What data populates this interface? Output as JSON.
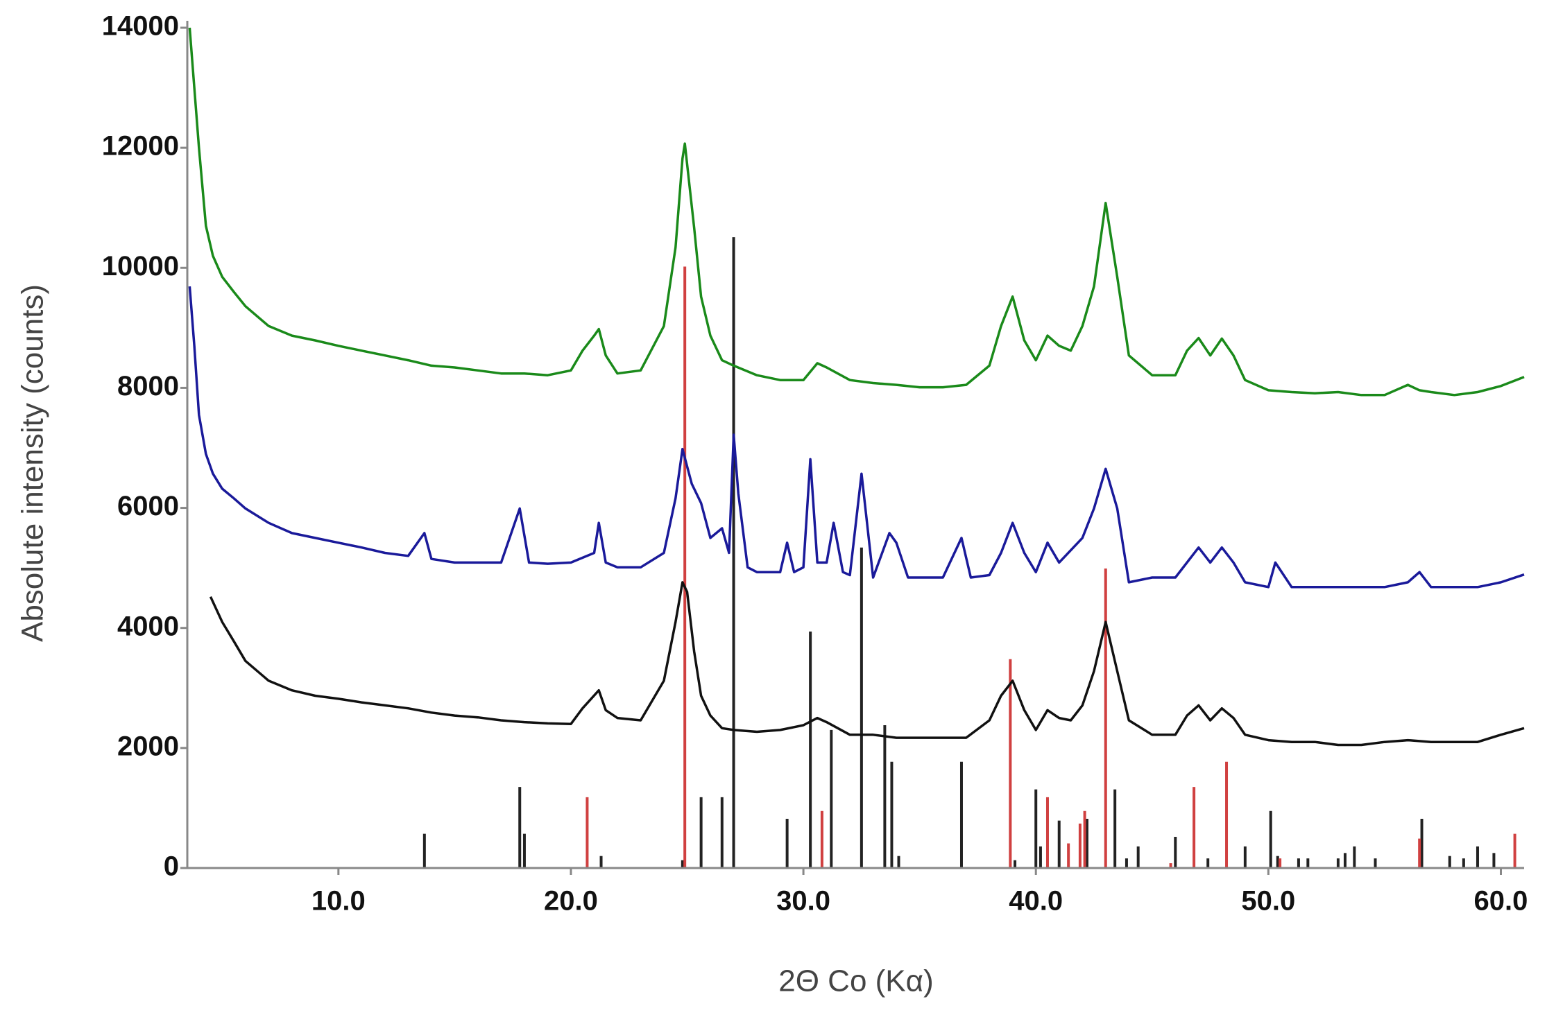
{
  "chart_data": {
    "type": "line",
    "xlabel": "2Θ Co (Kα)",
    "ylabel": "Absolute intensity (counts)",
    "xlim": [
      3.5,
      61
    ],
    "ylim": [
      0,
      14000
    ],
    "xticks": [
      {
        "value": 10,
        "label": "10.0"
      },
      {
        "value": 20,
        "label": "20.0"
      },
      {
        "value": 30,
        "label": "30.0"
      },
      {
        "value": 40,
        "label": "40.0"
      },
      {
        "value": 50,
        "label": "50.0"
      },
      {
        "value": 60,
        "label": "60.0"
      }
    ],
    "yticks": [
      0,
      2000,
      4000,
      6000,
      8000,
      10000,
      12000,
      14000
    ],
    "series": [
      {
        "color": "#1a8a1a",
        "x": [
          3.6,
          4,
          4.3,
          4.6,
          5,
          5.5,
          6,
          7,
          8,
          9,
          10,
          11,
          12,
          13,
          14,
          15,
          16,
          17,
          18,
          19,
          20,
          20.5,
          21,
          21.2,
          21.5,
          22,
          23,
          24,
          24.5,
          24.8,
          24.9,
          25.3,
          25.6,
          26,
          26.5,
          27,
          28,
          29,
          30,
          30.6,
          31,
          32,
          33,
          34,
          35,
          36,
          37,
          38,
          38.5,
          39,
          39.5,
          40,
          40.5,
          41,
          41.5,
          42,
          42.5,
          43,
          43.5,
          44,
          45,
          46,
          46.5,
          47,
          47.5,
          48,
          48.5,
          49,
          50,
          51,
          52,
          53,
          54,
          55,
          56,
          56.5,
          57,
          58,
          59,
          60,
          61
        ],
        "values": [
          14000,
          12000,
          10700,
          10200,
          9850,
          9600,
          9360,
          9030,
          8870,
          8790,
          8700,
          8620,
          8540,
          8460,
          8370,
          8340,
          8290,
          8240,
          8240,
          8210,
          8290,
          8620,
          8870,
          8980,
          8540,
          8240,
          8290,
          9030,
          10340,
          11820,
          12070,
          10670,
          9520,
          8870,
          8460,
          8370,
          8210,
          8130,
          8130,
          8410,
          8340,
          8130,
          8080,
          8050,
          8010,
          8010,
          8050,
          8370,
          9030,
          9520,
          8790,
          8460,
          8870,
          8700,
          8620,
          9030,
          9690,
          11080,
          9850,
          8540,
          8210,
          8210,
          8620,
          8830,
          8540,
          8820,
          8540,
          8130,
          7960,
          7930,
          7910,
          7930,
          7880,
          7880,
          8050,
          7960,
          7930,
          7880,
          7930,
          8030,
          8180
        ]
      },
      {
        "color": "#1a1a9a",
        "x": [
          3.6,
          3.8,
          4,
          4.3,
          4.6,
          5,
          5.5,
          6,
          7,
          8,
          9,
          10,
          11,
          12,
          13,
          13.7,
          14,
          15,
          16,
          17,
          17.8,
          18.2,
          19,
          20,
          21,
          21.2,
          21.5,
          22,
          23,
          24,
          24.5,
          24.8,
          25.2,
          25.6,
          26,
          26.5,
          26.8,
          27,
          27.2,
          27.6,
          28,
          29,
          29.3,
          29.6,
          30,
          30.3,
          30.6,
          31,
          31.3,
          31.7,
          32,
          32.5,
          33,
          33.7,
          34,
          34.5,
          35,
          36,
          36.8,
          37.2,
          38,
          38.5,
          39,
          39.5,
          40,
          40.5,
          41,
          42,
          42.5,
          43,
          43.5,
          44,
          45,
          46,
          47,
          47.5,
          48,
          48.5,
          49,
          50,
          50.3,
          51,
          52,
          53,
          54,
          55,
          56,
          56.5,
          57,
          58,
          59,
          60,
          61
        ],
        "values": [
          9690,
          8700,
          7550,
          6900,
          6570,
          6320,
          6160,
          5990,
          5750,
          5580,
          5500,
          5420,
          5340,
          5250,
          5200,
          5580,
          5150,
          5090,
          5090,
          5090,
          5990,
          5090,
          5070,
          5090,
          5250,
          5750,
          5090,
          5010,
          5010,
          5250,
          6160,
          6980,
          6400,
          6080,
          5500,
          5660,
          5250,
          7220,
          6240,
          5010,
          4930,
          4930,
          5420,
          4930,
          5010,
          6810,
          5090,
          5090,
          5750,
          4930,
          4880,
          6570,
          4840,
          5580,
          5420,
          4840,
          4840,
          4840,
          5500,
          4840,
          4880,
          5250,
          5750,
          5250,
          4930,
          5420,
          5090,
          5500,
          5990,
          6650,
          5990,
          4760,
          4840,
          4840,
          5340,
          5090,
          5340,
          5090,
          4760,
          4680,
          5090,
          4680,
          4680,
          4680,
          4680,
          4680,
          4760,
          4930,
          4680,
          4680,
          4680,
          4760,
          4890
        ]
      },
      {
        "color": "#111111",
        "x": [
          4.5,
          5,
          5.5,
          6,
          7,
          8,
          9,
          10,
          11,
          12,
          13,
          14,
          15,
          16,
          17,
          18,
          19,
          20,
          20.5,
          21.2,
          21.5,
          22,
          23,
          24,
          24.5,
          24.8,
          25,
          25.3,
          25.6,
          26,
          26.5,
          27,
          28,
          29,
          30,
          30.6,
          31,
          32,
          33,
          34,
          35,
          36,
          37,
          38,
          38.5,
          39,
          39.5,
          40,
          40.5,
          41,
          41.5,
          42,
          42.5,
          43,
          43.5,
          44,
          45,
          46,
          46.5,
          47,
          47.5,
          48,
          48.5,
          49,
          50,
          51,
          52,
          53,
          54,
          55,
          56,
          57,
          58,
          59,
          60,
          61
        ],
        "values": [
          4520,
          4100,
          3780,
          3450,
          3120,
          2960,
          2870,
          2820,
          2760,
          2710,
          2660,
          2590,
          2540,
          2510,
          2460,
          2430,
          2410,
          2400,
          2660,
          2960,
          2630,
          2500,
          2460,
          3120,
          4100,
          4760,
          4600,
          3610,
          2870,
          2540,
          2330,
          2300,
          2270,
          2300,
          2380,
          2500,
          2430,
          2220,
          2220,
          2170,
          2170,
          2170,
          2170,
          2460,
          2870,
          3120,
          2630,
          2300,
          2630,
          2500,
          2460,
          2710,
          3280,
          4100,
          3280,
          2460,
          2220,
          2220,
          2540,
          2710,
          2460,
          2660,
          2500,
          2220,
          2130,
          2100,
          2100,
          2050,
          2050,
          2100,
          2130,
          2100,
          2100,
          2100,
          2220,
          2330
        ]
      }
    ],
    "sticks": [
      {
        "color": "#222222",
        "x": [
          13.7,
          17.8,
          18.0,
          21.3,
          24.8,
          25.6,
          26.5,
          27.0,
          29.3,
          30.3,
          31.2,
          32.5,
          33.5,
          33.8,
          34.1,
          36.8,
          39.1,
          40.0,
          40.2,
          41.0,
          42.2,
          43.4,
          43.9,
          44.4,
          46.0,
          47.4,
          49.0,
          50.1,
          50.4,
          51.3,
          51.7,
          53.0,
          53.3,
          53.7,
          54.6,
          56.6,
          57.8,
          58.4,
          59.0,
          59.7
        ],
        "values": [
          570,
          1350,
          570,
          200,
          130,
          1180,
          1180,
          10510,
          820,
          3940,
          2300,
          5340,
          2380,
          1770,
          200,
          1770,
          130,
          1310,
          360,
          790,
          820,
          1310,
          160,
          360,
          520,
          160,
          360,
          950,
          200,
          160,
          160,
          160,
          250,
          360,
          160,
          820,
          200,
          160,
          360,
          250
        ]
      },
      {
        "color": "#d04040",
        "x": [
          20.7,
          24.9,
          30.8,
          38.9,
          40.5,
          41.4,
          41.9,
          42.1,
          43.0,
          45.8,
          46.8,
          48.2,
          50.5,
          56.5,
          60.6
        ],
        "values": [
          1180,
          10020,
          950,
          3480,
          1180,
          410,
          740,
          950,
          4990,
          80,
          1350,
          1770,
          160,
          490,
          570
        ]
      }
    ]
  }
}
